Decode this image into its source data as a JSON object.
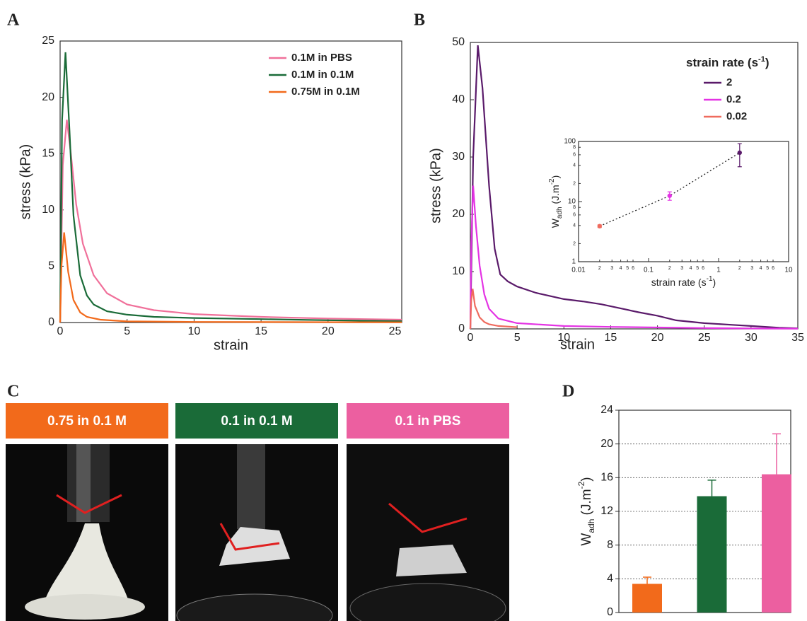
{
  "chart_data": [
    {
      "type": "line",
      "panel": "A",
      "xlabel": "strain",
      "ylabel": "stress (kPa)",
      "xlim": [
        0,
        25.5
      ],
      "ylim": [
        0,
        25
      ],
      "xticks": [
        0,
        5,
        10,
        15,
        20,
        25
      ],
      "yticks": [
        0,
        5,
        10,
        15,
        20,
        25
      ],
      "legend": "upper right",
      "series": [
        {
          "name": "0.1M in PBS",
          "color": "#f0709a",
          "x": [
            0,
            0.2,
            0.5,
            0.8,
            1.2,
            1.7,
            2.5,
            3.5,
            5,
            7,
            10,
            15,
            20,
            25.5
          ],
          "values": [
            0,
            14,
            18,
            15,
            10.5,
            7,
            4.2,
            2.6,
            1.6,
            1.1,
            0.75,
            0.5,
            0.35,
            0.25
          ]
        },
        {
          "name": "0.1M in 0.1M",
          "color": "#1a6b38",
          "x": [
            0,
            0.15,
            0.4,
            0.7,
            1,
            1.5,
            2,
            2.5,
            3.5,
            5,
            7,
            10,
            15,
            20,
            25.5
          ],
          "values": [
            0,
            18,
            24,
            17,
            9.5,
            4.2,
            2.4,
            1.6,
            1.0,
            0.7,
            0.5,
            0.4,
            0.3,
            0.2,
            0.12
          ]
        },
        {
          "name": "0.75M in 0.1M",
          "color": "#f26a1b",
          "x": [
            0,
            0.1,
            0.3,
            0.6,
            1,
            1.5,
            2,
            3,
            5,
            10,
            25.5
          ],
          "values": [
            0,
            5,
            8,
            4.5,
            2,
            0.9,
            0.5,
            0.25,
            0.1,
            0.05,
            0.02
          ]
        }
      ]
    },
    {
      "type": "line",
      "panel": "B",
      "xlabel": "strain",
      "ylabel": "stress (kPa)",
      "legend_title": {
        "text": "strain rate (s",
        "sup": "-1",
        "end": ")"
      },
      "xlim": [
        0,
        35
      ],
      "ylim": [
        0,
        50
      ],
      "xticks": [
        0,
        5,
        10,
        15,
        20,
        25,
        30,
        35
      ],
      "yticks": [
        0,
        10,
        20,
        30,
        40,
        50
      ],
      "legend": "upper right",
      "series": [
        {
          "name": "2",
          "color": "#5a1a6a",
          "x": [
            0,
            0.3,
            0.8,
            1.3,
            2,
            2.6,
            3.2,
            4,
            5,
            7,
            10,
            12,
            14,
            16,
            18,
            20,
            22,
            25,
            28,
            30,
            33,
            35
          ],
          "values": [
            0,
            30,
            49.5,
            42,
            25,
            14,
            9.5,
            8.3,
            7.4,
            6.3,
            5.2,
            4.8,
            4.3,
            3.6,
            2.9,
            2.3,
            1.5,
            1.0,
            0.7,
            0.5,
            0.2,
            0.1
          ]
        },
        {
          "name": "0.2",
          "color": "#e433e4",
          "x": [
            0,
            0.1,
            0.3,
            0.6,
            1,
            1.5,
            2,
            3,
            5,
            10,
            15,
            20,
            25,
            30,
            35
          ],
          "values": [
            0,
            15,
            25,
            18,
            11,
            6,
            3.5,
            1.8,
            1.0,
            0.5,
            0.35,
            0.25,
            0.15,
            0.08,
            0.05
          ]
        },
        {
          "name": "0.02",
          "color": "#ef6b5e",
          "x": [
            0,
            0.1,
            0.25,
            0.5,
            1,
            1.5,
            2,
            3,
            5
          ],
          "values": [
            0,
            5,
            7,
            4,
            2,
            1.2,
            0.8,
            0.5,
            0.3
          ]
        }
      ]
    },
    {
      "type": "scatter",
      "xscale": "log",
      "yscale": "log",
      "line": "dotted",
      "xlabel": {
        "text": "strain rate (s",
        "sup": "-1",
        "end": ")"
      },
      "ylabel": {
        "text": "W",
        "sub": "adh",
        "mid": " (J.m",
        "sup": "-2",
        "end": ")"
      },
      "xlim": [
        0.01,
        10
      ],
      "ylim": [
        1,
        100
      ],
      "xticks": [
        0.01,
        0.1,
        1,
        10
      ],
      "xminor": [
        {
          "value": 0.02,
          "label": "2"
        },
        {
          "value": 0.03,
          "label": "3"
        },
        {
          "value": 0.04,
          "label": "4"
        },
        {
          "value": 0.05,
          "label": "5"
        },
        {
          "value": 0.06,
          "label": "6"
        },
        {
          "value": 0.2,
          "label": "2"
        },
        {
          "value": 0.3,
          "label": "3"
        },
        {
          "value": 0.4,
          "label": "4"
        },
        {
          "value": 0.5,
          "label": "5"
        },
        {
          "value": 0.6,
          "label": "6"
        },
        2,
        3,
        4,
        5,
        6
      ],
      "yticks": [
        1,
        10,
        100
      ],
      "yminor": [
        2,
        4,
        6,
        8,
        {
          "value": 20,
          "label": "2"
        },
        {
          "value": 40,
          "label": "4"
        },
        {
          "value": 60,
          "label": "6"
        },
        {
          "value": 80,
          "label": "8"
        }
      ],
      "x": [
        0.02,
        0.2,
        2
      ],
      "values": [
        3.9,
        12.5,
        65
      ],
      "errors": [
        0.2,
        2,
        27
      ],
      "colors": [
        "#ef6b5e",
        "#e433e4",
        "#5a1a6a"
      ]
    },
    {
      "type": "bar",
      "panel": "D",
      "ylabel": {
        "text": "W",
        "sub": "adh",
        "mid": " (J.m",
        "sup": "-2",
        "end": ")"
      },
      "categories": [
        null,
        null,
        null
      ],
      "values": [
        3.4,
        13.8,
        16.4
      ],
      "errors": [
        0.8,
        1.9,
        4.8
      ],
      "colors": [
        "#f26a1b",
        "#1a6b38",
        "#ec5fa0"
      ],
      "ylim": [
        0,
        24
      ],
      "yticks": [
        0,
        4,
        8,
        12,
        16,
        20,
        24
      ],
      "grid": true
    }
  ],
  "panel_c": {
    "panel": "C",
    "photos": [
      {
        "caption": "0.75 in 0.1 M",
        "color": "#f26a1b"
      },
      {
        "caption": "0.1 in 0.1 M",
        "color": "#1a6b38"
      },
      {
        "caption": "0.1 in PBS",
        "color": "#ec5fa0"
      }
    ]
  }
}
